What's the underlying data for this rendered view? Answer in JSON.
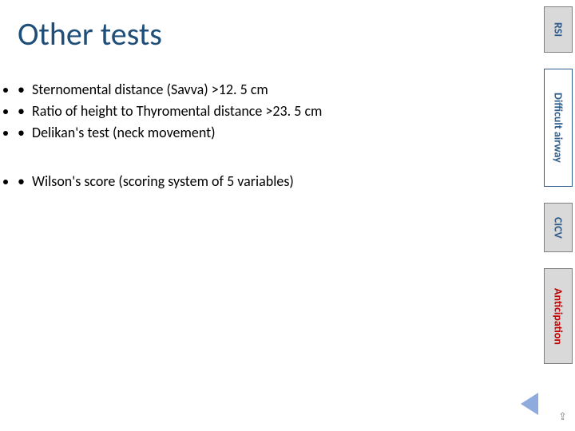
{
  "title": "Other tests",
  "title_color": "#1f4e79",
  "title_fontsize": 40,
  "bullets_group1": [
    "Sternomental distance (Savva) >12. 5 cm",
    "Ratio of height to Thyromental distance >23. 5 cm",
    "Delikan's test (neck movement)"
  ],
  "bullets_group2": [
    "Wilson's score (scoring system of 5 variables)"
  ],
  "bullet_fontsize": 18,
  "bullet_color": "#000000",
  "tabs": {
    "rsi": {
      "label": "RSI",
      "bg": "#d9d9d9",
      "border": "#808080",
      "text": "#2e5c8a"
    },
    "difficult": {
      "label": "Difficult airway",
      "bg": "#ffffff",
      "border": "#2e5c8a",
      "text": "#2e5c8a"
    },
    "cicv": {
      "label": "CICV",
      "bg": "#d9d9d9",
      "border": "#808080",
      "text": "#2e5c8a"
    },
    "anticipation": {
      "label": "Anticipation",
      "bg": "#d9d9d9",
      "border": "#808080",
      "text": "#c00000"
    }
  },
  "nav_arrow_color": "#8faadc",
  "nav_return_glyph": "⇪",
  "nav_return_color": "#808080",
  "background_color": "#ffffff"
}
